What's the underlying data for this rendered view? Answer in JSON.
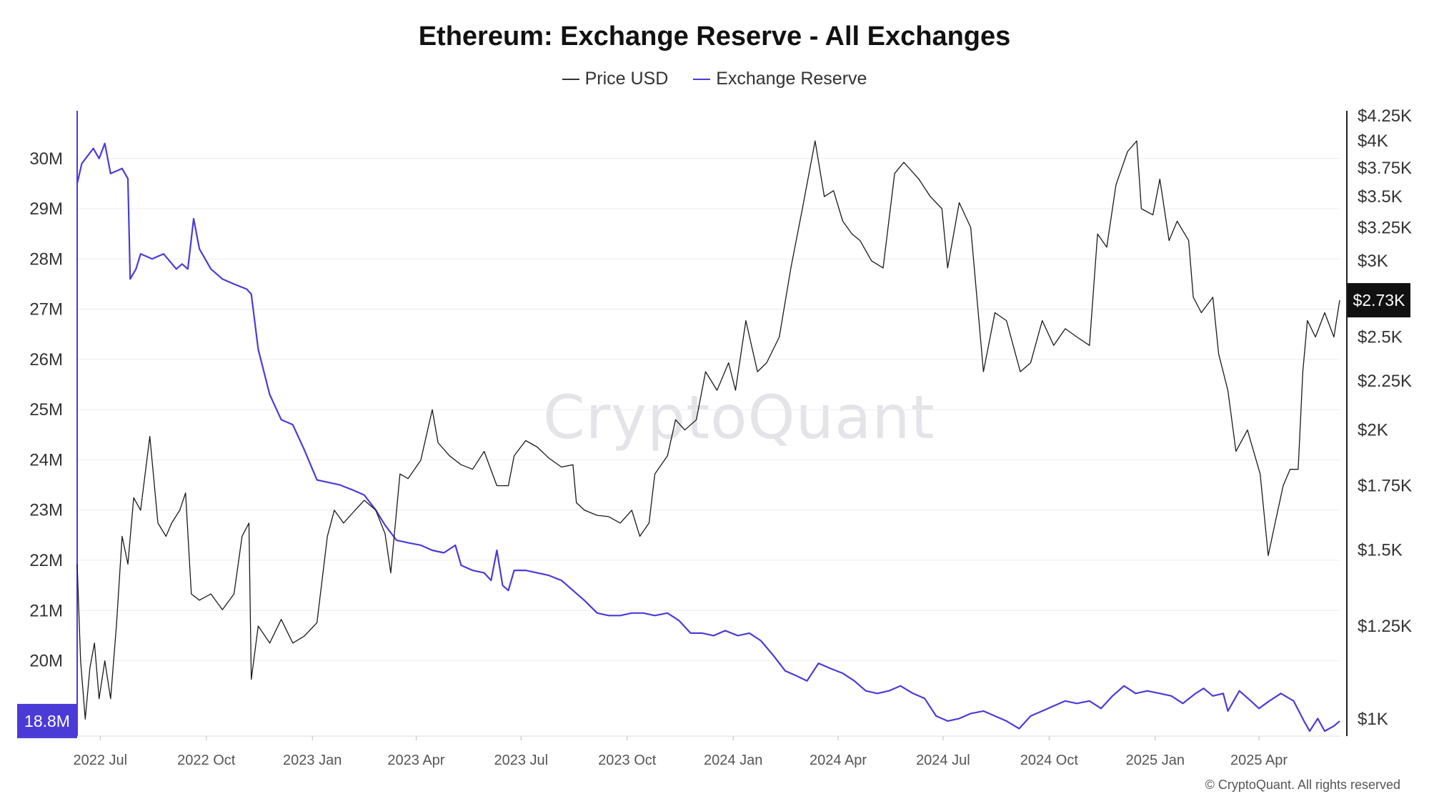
{
  "title": "Ethereum: Exchange Reserve - All Exchanges",
  "legend": {
    "price": "Price USD",
    "reserve": "Exchange Reserve"
  },
  "watermark": "CryptoQuant",
  "copyright": "© CryptoQuant. All rights reserved",
  "badges": {
    "reserve_current": "18.8M",
    "price_current": "$2.73K"
  },
  "colors": {
    "reserve": "#4b3bd6",
    "price": "#1a1a1a",
    "badge_reserve": "#4b3bd6",
    "badge_price": "#111111"
  },
  "chart_data": {
    "type": "line",
    "title": "Ethereum: Exchange Reserve - All Exchanges",
    "x_tick_labels": [
      "2022 Jul",
      "2022 Oct",
      "2023 Jan",
      "2023 Apr",
      "2023 Jul",
      "2023 Oct",
      "2024 Jan",
      "2024 Apr",
      "2024 Jul",
      "2024 Oct",
      "2025 Jan",
      "2025 Apr"
    ],
    "x_range": [
      "2022-06-11",
      "2025-06-10"
    ],
    "left_axis": {
      "ticks": [
        20,
        21,
        22,
        23,
        24,
        25,
        26,
        27,
        28,
        29,
        30
      ],
      "tick_labels": [
        "20M",
        "21M",
        "22M",
        "23M",
        "24M",
        "25M",
        "26M",
        "27M",
        "28M",
        "29M",
        "30M"
      ],
      "range": [
        18.5,
        30.95
      ]
    },
    "right_axis": {
      "scale": "log",
      "ticks": [
        1000,
        1250,
        1500,
        1750,
        2000,
        2250,
        2500,
        3000,
        3250,
        3500,
        3750,
        4000,
        4250
      ],
      "tick_labels": [
        "$1K",
        "$1.25K",
        "$1.5K",
        "$1.75K",
        "$2K",
        "$2.25K",
        "$2.5K",
        "$3K",
        "$3.25K",
        "$3.5K",
        "$3.75K",
        "$4K",
        "$4.25K"
      ],
      "range": [
        960,
        4300
      ]
    },
    "grid": true,
    "legend_position": "top-center",
    "series": [
      {
        "name": "Exchange Reserve",
        "axis": "left",
        "unit": "ETH",
        "points": [
          [
            "2022-06-11",
            29.5
          ],
          [
            "2022-06-15",
            29.9
          ],
          [
            "2022-06-25",
            30.2
          ],
          [
            "2022-06-30",
            30.0
          ],
          [
            "2022-07-05",
            30.3
          ],
          [
            "2022-07-10",
            29.7
          ],
          [
            "2022-07-20",
            29.8
          ],
          [
            "2022-07-25",
            29.6
          ],
          [
            "2022-07-27",
            27.6
          ],
          [
            "2022-08-01",
            27.8
          ],
          [
            "2022-08-05",
            28.1
          ],
          [
            "2022-08-15",
            28.0
          ],
          [
            "2022-08-25",
            28.1
          ],
          [
            "2022-09-05",
            27.8
          ],
          [
            "2022-09-10",
            27.9
          ],
          [
            "2022-09-15",
            27.8
          ],
          [
            "2022-09-20",
            28.8
          ],
          [
            "2022-09-25",
            28.2
          ],
          [
            "2022-10-05",
            27.8
          ],
          [
            "2022-10-15",
            27.6
          ],
          [
            "2022-10-25",
            27.5
          ],
          [
            "2022-11-05",
            27.4
          ],
          [
            "2022-11-09",
            27.3
          ],
          [
            "2022-11-15",
            26.2
          ],
          [
            "2022-11-25",
            25.3
          ],
          [
            "2022-12-05",
            24.8
          ],
          [
            "2022-12-15",
            24.7
          ],
          [
            "2022-12-25",
            24.2
          ],
          [
            "2023-01-05",
            23.6
          ],
          [
            "2023-01-15",
            23.55
          ],
          [
            "2023-01-25",
            23.5
          ],
          [
            "2023-02-05",
            23.4
          ],
          [
            "2023-02-15",
            23.3
          ],
          [
            "2023-02-25",
            23.0
          ],
          [
            "2023-03-05",
            22.7
          ],
          [
            "2023-03-15",
            22.4
          ],
          [
            "2023-03-25",
            22.35
          ],
          [
            "2023-04-05",
            22.3
          ],
          [
            "2023-04-15",
            22.2
          ],
          [
            "2023-04-25",
            22.15
          ],
          [
            "2023-05-05",
            22.3
          ],
          [
            "2023-05-10",
            21.9
          ],
          [
            "2023-05-20",
            21.8
          ],
          [
            "2023-05-30",
            21.75
          ],
          [
            "2023-06-05",
            21.6
          ],
          [
            "2023-06-10",
            22.2
          ],
          [
            "2023-06-15",
            21.5
          ],
          [
            "2023-06-20",
            21.4
          ],
          [
            "2023-06-25",
            21.8
          ],
          [
            "2023-07-05",
            21.8
          ],
          [
            "2023-07-15",
            21.75
          ],
          [
            "2023-07-25",
            21.7
          ],
          [
            "2023-08-05",
            21.6
          ],
          [
            "2023-08-15",
            21.4
          ],
          [
            "2023-08-25",
            21.2
          ],
          [
            "2023-09-05",
            20.95
          ],
          [
            "2023-09-15",
            20.9
          ],
          [
            "2023-09-25",
            20.9
          ],
          [
            "2023-10-05",
            20.95
          ],
          [
            "2023-10-15",
            20.95
          ],
          [
            "2023-10-25",
            20.9
          ],
          [
            "2023-11-05",
            20.95
          ],
          [
            "2023-11-15",
            20.8
          ],
          [
            "2023-11-25",
            20.55
          ],
          [
            "2023-12-05",
            20.55
          ],
          [
            "2023-12-15",
            20.5
          ],
          [
            "2023-12-25",
            20.6
          ],
          [
            "2024-01-05",
            20.5
          ],
          [
            "2024-01-15",
            20.55
          ],
          [
            "2024-01-25",
            20.4
          ],
          [
            "2024-02-05",
            20.1
          ],
          [
            "2024-02-15",
            19.8
          ],
          [
            "2024-02-25",
            19.7
          ],
          [
            "2024-03-05",
            19.6
          ],
          [
            "2024-03-15",
            19.95
          ],
          [
            "2024-03-25",
            19.85
          ],
          [
            "2024-04-05",
            19.75
          ],
          [
            "2024-04-15",
            19.6
          ],
          [
            "2024-04-25",
            19.4
          ],
          [
            "2024-05-05",
            19.35
          ],
          [
            "2024-05-15",
            19.4
          ],
          [
            "2024-05-25",
            19.5
          ],
          [
            "2024-06-05",
            19.35
          ],
          [
            "2024-06-15",
            19.25
          ],
          [
            "2024-06-25",
            18.9
          ],
          [
            "2024-07-05",
            18.8
          ],
          [
            "2024-07-15",
            18.85
          ],
          [
            "2024-07-25",
            18.95
          ],
          [
            "2024-08-05",
            19.0
          ],
          [
            "2024-08-15",
            18.9
          ],
          [
            "2024-08-25",
            18.8
          ],
          [
            "2024-09-05",
            18.65
          ],
          [
            "2024-09-15",
            18.9
          ],
          [
            "2024-09-25",
            19.0
          ],
          [
            "2024-10-05",
            19.1
          ],
          [
            "2024-10-15",
            19.2
          ],
          [
            "2024-10-25",
            19.15
          ],
          [
            "2024-11-05",
            19.2
          ],
          [
            "2024-11-15",
            19.05
          ],
          [
            "2024-11-25",
            19.3
          ],
          [
            "2024-12-05",
            19.5
          ],
          [
            "2024-12-15",
            19.35
          ],
          [
            "2024-12-25",
            19.4
          ],
          [
            "2025-01-05",
            19.35
          ],
          [
            "2025-01-15",
            19.3
          ],
          [
            "2025-01-25",
            19.15
          ],
          [
            "2025-02-05",
            19.35
          ],
          [
            "2025-02-12",
            19.45
          ],
          [
            "2025-02-20",
            19.3
          ],
          [
            "2025-03-01",
            19.35
          ],
          [
            "2025-03-05",
            19.0
          ],
          [
            "2025-03-15",
            19.4
          ],
          [
            "2025-03-25",
            19.2
          ],
          [
            "2025-04-01",
            19.05
          ],
          [
            "2025-04-10",
            19.2
          ],
          [
            "2025-04-20",
            19.35
          ],
          [
            "2025-05-01",
            19.2
          ],
          [
            "2025-05-10",
            18.8
          ],
          [
            "2025-05-15",
            18.6
          ],
          [
            "2025-05-22",
            18.85
          ],
          [
            "2025-05-28",
            18.6
          ],
          [
            "2025-06-05",
            18.7
          ],
          [
            "2025-06-10",
            18.8
          ]
        ]
      },
      {
        "name": "Price USD",
        "axis": "right",
        "unit": "USD",
        "points": [
          [
            "2022-06-11",
            1450
          ],
          [
            "2022-06-14",
            1150
          ],
          [
            "2022-06-18",
            1000
          ],
          [
            "2022-06-22",
            1130
          ],
          [
            "2022-06-26",
            1200
          ],
          [
            "2022-06-30",
            1050
          ],
          [
            "2022-07-05",
            1150
          ],
          [
            "2022-07-10",
            1050
          ],
          [
            "2022-07-15",
            1250
          ],
          [
            "2022-07-20",
            1550
          ],
          [
            "2022-07-25",
            1450
          ],
          [
            "2022-07-30",
            1700
          ],
          [
            "2022-08-05",
            1650
          ],
          [
            "2022-08-13",
            1970
          ],
          [
            "2022-08-20",
            1600
          ],
          [
            "2022-08-27",
            1550
          ],
          [
            "2022-09-01",
            1600
          ],
          [
            "2022-09-08",
            1650
          ],
          [
            "2022-09-13",
            1720
          ],
          [
            "2022-09-18",
            1350
          ],
          [
            "2022-09-25",
            1330
          ],
          [
            "2022-10-05",
            1350
          ],
          [
            "2022-10-15",
            1300
          ],
          [
            "2022-10-25",
            1350
          ],
          [
            "2022-11-01",
            1550
          ],
          [
            "2022-11-07",
            1600
          ],
          [
            "2022-11-09",
            1100
          ],
          [
            "2022-11-15",
            1250
          ],
          [
            "2022-11-25",
            1200
          ],
          [
            "2022-12-05",
            1270
          ],
          [
            "2022-12-15",
            1200
          ],
          [
            "2022-12-25",
            1220
          ],
          [
            "2023-01-05",
            1260
          ],
          [
            "2023-01-14",
            1550
          ],
          [
            "2023-01-20",
            1650
          ],
          [
            "2023-01-28",
            1600
          ],
          [
            "2023-02-05",
            1640
          ],
          [
            "2023-02-15",
            1690
          ],
          [
            "2023-02-25",
            1650
          ],
          [
            "2023-03-05",
            1560
          ],
          [
            "2023-03-10",
            1420
          ],
          [
            "2023-03-18",
            1800
          ],
          [
            "2023-03-25",
            1780
          ],
          [
            "2023-04-05",
            1860
          ],
          [
            "2023-04-15",
            2100
          ],
          [
            "2023-04-20",
            1940
          ],
          [
            "2023-04-30",
            1880
          ],
          [
            "2023-05-10",
            1840
          ],
          [
            "2023-05-20",
            1820
          ],
          [
            "2023-05-30",
            1900
          ],
          [
            "2023-06-10",
            1750
          ],
          [
            "2023-06-20",
            1750
          ],
          [
            "2023-06-25",
            1880
          ],
          [
            "2023-07-05",
            1950
          ],
          [
            "2023-07-15",
            1920
          ],
          [
            "2023-07-25",
            1870
          ],
          [
            "2023-08-05",
            1830
          ],
          [
            "2023-08-15",
            1840
          ],
          [
            "2023-08-18",
            1680
          ],
          [
            "2023-08-25",
            1650
          ],
          [
            "2023-09-05",
            1630
          ],
          [
            "2023-09-15",
            1625
          ],
          [
            "2023-09-25",
            1600
          ],
          [
            "2023-10-05",
            1650
          ],
          [
            "2023-10-12",
            1550
          ],
          [
            "2023-10-20",
            1600
          ],
          [
            "2023-10-25",
            1800
          ],
          [
            "2023-11-05",
            1880
          ],
          [
            "2023-11-12",
            2050
          ],
          [
            "2023-11-20",
            2000
          ],
          [
            "2023-11-30",
            2050
          ],
          [
            "2023-12-08",
            2300
          ],
          [
            "2023-12-18",
            2200
          ],
          [
            "2023-12-28",
            2350
          ],
          [
            "2024-01-03",
            2200
          ],
          [
            "2024-01-12",
            2600
          ],
          [
            "2024-01-22",
            2300
          ],
          [
            "2024-01-30",
            2350
          ],
          [
            "2024-02-10",
            2500
          ],
          [
            "2024-02-20",
            2950
          ],
          [
            "2024-03-01",
            3400
          ],
          [
            "2024-03-12",
            4000
          ],
          [
            "2024-03-20",
            3500
          ],
          [
            "2024-03-28",
            3550
          ],
          [
            "2024-04-05",
            3300
          ],
          [
            "2024-04-13",
            3200
          ],
          [
            "2024-04-20",
            3150
          ],
          [
            "2024-04-30",
            3000
          ],
          [
            "2024-05-10",
            2950
          ],
          [
            "2024-05-20",
            3700
          ],
          [
            "2024-05-28",
            3800
          ],
          [
            "2024-06-10",
            3650
          ],
          [
            "2024-06-20",
            3500
          ],
          [
            "2024-06-30",
            3400
          ],
          [
            "2024-07-05",
            2950
          ],
          [
            "2024-07-15",
            3450
          ],
          [
            "2024-07-25",
            3250
          ],
          [
            "2024-08-05",
            2300
          ],
          [
            "2024-08-15",
            2650
          ],
          [
            "2024-08-25",
            2600
          ],
          [
            "2024-09-06",
            2300
          ],
          [
            "2024-09-15",
            2350
          ],
          [
            "2024-09-25",
            2600
          ],
          [
            "2024-10-05",
            2450
          ],
          [
            "2024-10-15",
            2550
          ],
          [
            "2024-10-25",
            2500
          ],
          [
            "2024-11-05",
            2450
          ],
          [
            "2024-11-12",
            3200
          ],
          [
            "2024-11-20",
            3100
          ],
          [
            "2024-11-28",
            3600
          ],
          [
            "2024-12-08",
            3900
          ],
          [
            "2024-12-16",
            4000
          ],
          [
            "2024-12-20",
            3400
          ],
          [
            "2024-12-30",
            3350
          ],
          [
            "2025-01-05",
            3650
          ],
          [
            "2025-01-13",
            3150
          ],
          [
            "2025-01-20",
            3300
          ],
          [
            "2025-01-30",
            3150
          ],
          [
            "2025-02-03",
            2750
          ],
          [
            "2025-02-10",
            2650
          ],
          [
            "2025-02-20",
            2750
          ],
          [
            "2025-02-25",
            2400
          ],
          [
            "2025-03-05",
            2200
          ],
          [
            "2025-03-12",
            1900
          ],
          [
            "2025-03-22",
            2000
          ],
          [
            "2025-04-02",
            1800
          ],
          [
            "2025-04-09",
            1480
          ],
          [
            "2025-04-15",
            1600
          ],
          [
            "2025-04-22",
            1750
          ],
          [
            "2025-04-28",
            1820
          ],
          [
            "2025-05-05",
            1820
          ],
          [
            "2025-05-09",
            2300
          ],
          [
            "2025-05-13",
            2600
          ],
          [
            "2025-05-20",
            2500
          ],
          [
            "2025-05-28",
            2650
          ],
          [
            "2025-06-05",
            2500
          ],
          [
            "2025-06-10",
            2730
          ]
        ]
      }
    ]
  }
}
